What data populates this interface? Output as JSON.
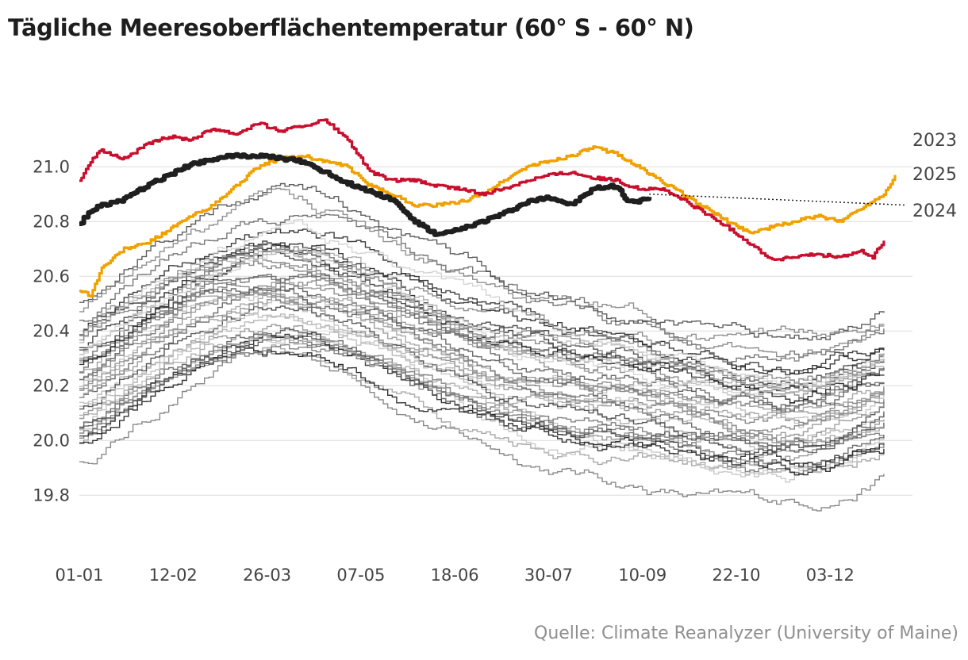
{
  "chart_data": {
    "type": "line",
    "title": "Tägliche Meeresoberflächentemperatur (60° S - 60° N)",
    "xlabel": "",
    "ylabel": "",
    "x_tick_labels": [
      "01-01",
      "12-02",
      "26-03",
      "07-05",
      "18-06",
      "30-07",
      "10-09",
      "22-10",
      "03-12"
    ],
    "x_tick_days": [
      0,
      42,
      84,
      126,
      168,
      210,
      252,
      294,
      336
    ],
    "x_range": [
      0,
      365
    ],
    "ylim": [
      19.65,
      21.25
    ],
    "y_ticks": [
      19.8,
      20.0,
      20.2,
      20.4,
      20.6,
      20.8,
      21.0
    ],
    "grid": "horizontal",
    "series": [
      {
        "name": "2023",
        "color": "#f0a100",
        "x": [
          0,
          5,
          10,
          20,
          30,
          40,
          50,
          60,
          70,
          80,
          90,
          100,
          110,
          120,
          130,
          140,
          150,
          160,
          170,
          180,
          190,
          200,
          210,
          220,
          230,
          240,
          250,
          260,
          270,
          280,
          290,
          300,
          310,
          320,
          330,
          340,
          350,
          360,
          365
        ],
        "y": [
          20.55,
          20.53,
          20.63,
          20.7,
          20.72,
          20.77,
          20.82,
          20.86,
          20.93,
          21.0,
          21.03,
          21.04,
          21.02,
          21.0,
          20.93,
          20.9,
          20.86,
          20.86,
          20.87,
          20.9,
          20.95,
          21.0,
          21.02,
          21.04,
          21.07,
          21.05,
          21.0,
          20.95,
          20.9,
          20.85,
          20.8,
          20.76,
          20.78,
          20.8,
          20.82,
          20.8,
          20.85,
          20.9,
          20.97
        ]
      },
      {
        "name": "2024",
        "color": "#c8102e",
        "x": [
          0,
          5,
          10,
          20,
          30,
          40,
          50,
          60,
          70,
          80,
          90,
          100,
          110,
          120,
          130,
          140,
          150,
          160,
          170,
          180,
          190,
          200,
          210,
          220,
          230,
          240,
          250,
          260,
          270,
          280,
          290,
          300,
          310,
          320,
          330,
          340,
          350,
          355,
          360
        ],
        "y": [
          20.95,
          21.02,
          21.06,
          21.03,
          21.08,
          21.11,
          21.1,
          21.14,
          21.12,
          21.16,
          21.13,
          21.15,
          21.17,
          21.1,
          20.98,
          20.95,
          20.95,
          20.93,
          20.92,
          20.9,
          20.92,
          20.95,
          20.97,
          20.98,
          20.96,
          20.95,
          20.92,
          20.92,
          20.88,
          20.83,
          20.78,
          20.72,
          20.66,
          20.67,
          20.68,
          20.67,
          20.69,
          20.67,
          20.73
        ]
      },
      {
        "name": "2025",
        "color": "#1f1f1f",
        "x": [
          0,
          5,
          10,
          20,
          30,
          40,
          50,
          60,
          70,
          80,
          90,
          100,
          110,
          120,
          130,
          140,
          150,
          160,
          170,
          180,
          190,
          200,
          210,
          220,
          230,
          240,
          245,
          250,
          255
        ],
        "y": [
          20.79,
          20.84,
          20.86,
          20.88,
          20.93,
          20.97,
          21.01,
          21.03,
          21.04,
          21.04,
          21.03,
          21.02,
          20.98,
          20.94,
          20.91,
          20.88,
          20.8,
          20.75,
          20.77,
          20.8,
          20.83,
          20.87,
          20.89,
          20.86,
          20.92,
          20.93,
          20.88,
          20.87,
          20.89
        ]
      }
    ],
    "trend_2025": {
      "x": [
        255,
        365
      ],
      "y": [
        20.9,
        20.86
      ]
    },
    "historical_years": 42
  },
  "source": "Quelle: Climate Reanalyzer (University of Maine)"
}
